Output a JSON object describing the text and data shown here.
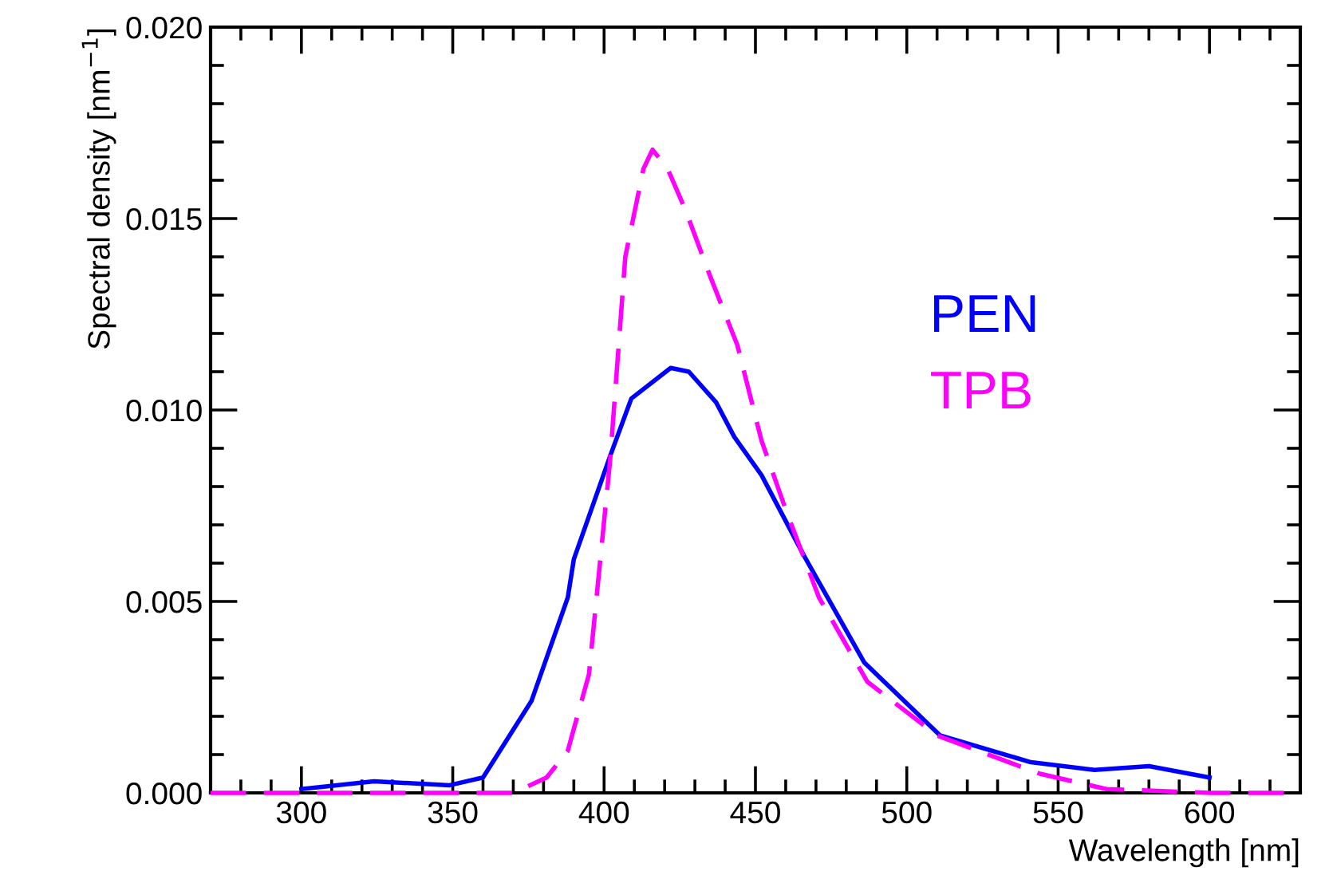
{
  "chart_data": {
    "type": "line",
    "xlabel": "Wavelength [nm]",
    "ylabel": "Spectral density [nm$^{−1}$]",
    "xlim": [
      270,
      630
    ],
    "ylim": [
      0,
      0.02
    ],
    "xticks": [
      300,
      350,
      400,
      450,
      500,
      550,
      600
    ],
    "yticks": [
      {
        "value": 0,
        "label": "0.000"
      },
      {
        "value": 0.005,
        "label": "0.005"
      },
      {
        "value": 0.01,
        "label": "0.010"
      },
      {
        "value": 0.015,
        "label": "0.015"
      },
      {
        "value": 0.02,
        "label": "0.020"
      }
    ],
    "grid": false,
    "legend": "right",
    "series": [
      {
        "name": "PEN",
        "color": "#0000ff",
        "line_style": "solid",
        "x": [
          300,
          324,
          349,
          360,
          376,
          388,
          390,
          402,
          409,
          422,
          428,
          437,
          443,
          452,
          466,
          486,
          511,
          541,
          562,
          580,
          600
        ],
        "values": [
          0.0001,
          0.0003,
          0.0002,
          0.0004,
          0.0024,
          0.0051,
          0.0061,
          0.0088,
          0.0103,
          0.0111,
          0.011,
          0.0102,
          0.0093,
          0.0083,
          0.0062,
          0.0034,
          0.0015,
          0.0008,
          0.0006,
          0.0007,
          0.0004
        ]
      },
      {
        "name": "TPB",
        "color": "#ff00ff",
        "line_style": "dashed",
        "x": [
          270,
          360,
          370,
          381,
          388,
          395,
          402,
          407,
          413,
          416,
          421,
          427,
          435,
          444,
          452,
          460,
          471,
          487,
          510,
          544,
          566,
          600,
          630
        ],
        "values": [
          0,
          0,
          0,
          0.0004,
          0.0011,
          0.0031,
          0.0087,
          0.014,
          0.0163,
          0.0168,
          0.0163,
          0.0152,
          0.0135,
          0.0117,
          0.0092,
          0.0074,
          0.0051,
          0.0029,
          0.0015,
          0.0005,
          0.0001,
          0,
          0
        ]
      }
    ]
  }
}
